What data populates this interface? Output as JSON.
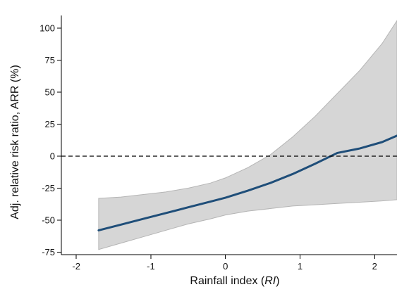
{
  "chart_data": {
    "type": "line",
    "title": "",
    "xlabel": {
      "prefix": "Rainfall index (",
      "symbol": "RI",
      "suffix": ")"
    },
    "ylabel": "Adj. relative risk ratio, ARR (%)",
    "xlim": [
      -2.2,
      2.3
    ],
    "ylim": [
      -77,
      110
    ],
    "x_ticks": [
      {
        "value": -2,
        "label": "-2"
      },
      {
        "value": -1,
        "label": "-1"
      },
      {
        "value": 0,
        "label": "0"
      },
      {
        "value": 1,
        "label": "1"
      },
      {
        "value": 2,
        "label": "2"
      }
    ],
    "y_ticks": [
      {
        "value": 100,
        "label": "100"
      },
      {
        "value": 75,
        "label": "75"
      },
      {
        "value": 50,
        "label": "50"
      },
      {
        "value": 25,
        "label": "25"
      },
      {
        "value": 0,
        "label": "0"
      },
      {
        "value": -25,
        "label": "-25"
      },
      {
        "value": -50,
        "label": "-50"
      },
      {
        "value": -75,
        "label": "-75"
      }
    ],
    "reference_line": {
      "y": 0,
      "style": "dashed",
      "color": "#000000"
    },
    "series": [
      {
        "x": [
          -1.7,
          -1.4,
          -1.1,
          -0.8,
          -0.5,
          -0.2,
          0.0,
          0.3,
          0.6,
          0.9,
          1.2,
          1.5,
          1.8,
          2.1,
          2.3
        ],
        "y": [
          -58,
          -53.5,
          -49,
          -44.5,
          -40,
          -35.5,
          -32.5,
          -27,
          -21,
          -14,
          -6,
          2.5,
          6,
          11,
          16
        ],
        "ci_lower": [
          -73,
          -68,
          -63,
          -58,
          -53,
          -49,
          -46,
          -43,
          -41,
          -39,
          -38,
          -37,
          -36,
          -35,
          -34
        ],
        "ci_upper": [
          -33,
          -32,
          -30,
          -28,
          -25,
          -21,
          -17,
          -9,
          1,
          15,
          31,
          49,
          67,
          88,
          106
        ],
        "color": "#1f4e79",
        "band_color": "#d6d6d6",
        "band_edge_color": "#b5b5b5"
      }
    ]
  }
}
